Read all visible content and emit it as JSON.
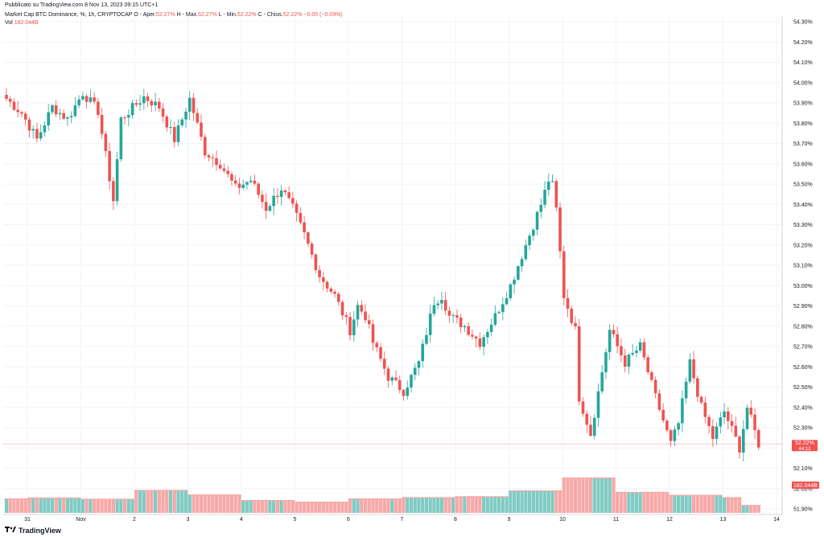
{
  "header": {
    "published": "Pubblicato su TradingView.com 8 Nov 13, 2023 09:15 UTC+1"
  },
  "legend": {
    "symbol": "Market Cap BTC Dominance, %, 1h, CRYPTOCAP",
    "open_label": "O - Aper.",
    "open": "52.27%",
    "high_label": "H - Max.",
    "high": "52.27%",
    "low_label": "L - Min.",
    "low": "52.22%",
    "close_label": "C - Chius.",
    "close": "52.22%",
    "change": "−0.05 (−0.09%)",
    "vol_label": "Vol",
    "vol": "182.044B"
  },
  "footer": {
    "logo_label": "TradingView"
  },
  "price_badge": {
    "value": "52.22%",
    "sub": "44:12"
  },
  "vol_badge": {
    "value": "182.044B"
  },
  "colors": {
    "up": "#26a69a",
    "down": "#ef5350",
    "vol_up": "#80cbc4",
    "vol_down": "#f7a9a7",
    "grid": "#f0f3fa"
  },
  "chart_data": {
    "type": "candlestick",
    "title": "Market Cap BTC Dominance, %, 1h, CRYPTOCAP",
    "x_tick_labels": [
      "31",
      "Nov",
      "2",
      "3",
      "4",
      "5",
      "6",
      "7",
      "8",
      "9",
      "10",
      "11",
      "12",
      "13",
      "14"
    ],
    "y_tick_labels": [
      "54.30%",
      "54.20%",
      "54.10%",
      "54.00%",
      "53.90%",
      "53.80%",
      "53.70%",
      "53.60%",
      "53.50%",
      "53.40%",
      "53.30%",
      "53.20%",
      "53.10%",
      "53.00%",
      "52.90%",
      "52.80%",
      "52.70%",
      "52.60%",
      "52.50%",
      "52.40%",
      "52.30%",
      "52.20%",
      "52.10%",
      "52.00%",
      "51.90%"
    ],
    "ylim": [
      51.88,
      54.32
    ],
    "grid": true,
    "price_line": 52.22,
    "close_path": [
      [
        0,
        53.92
      ],
      [
        4,
        53.85
      ],
      [
        8,
        53.72
      ],
      [
        12,
        53.88
      ],
      [
        16,
        53.82
      ],
      [
        20,
        53.95
      ],
      [
        24,
        53.86
      ],
      [
        28,
        53.42
      ],
      [
        30,
        53.82
      ],
      [
        36,
        53.93
      ],
      [
        40,
        53.88
      ],
      [
        44,
        53.72
      ],
      [
        48,
        53.92
      ],
      [
        52,
        53.66
      ],
      [
        56,
        53.6
      ],
      [
        60,
        53.48
      ],
      [
        64,
        53.52
      ],
      [
        68,
        53.38
      ],
      [
        72,
        53.48
      ],
      [
        75,
        53.38
      ],
      [
        78,
        53.25
      ],
      [
        82,
        53.05
      ],
      [
        86,
        52.95
      ],
      [
        90,
        52.78
      ],
      [
        92,
        52.9
      ],
      [
        94,
        52.85
      ],
      [
        96,
        52.72
      ],
      [
        100,
        52.55
      ],
      [
        104,
        52.48
      ],
      [
        108,
        52.62
      ],
      [
        112,
        52.92
      ],
      [
        114,
        52.95
      ],
      [
        116,
        52.85
      ],
      [
        120,
        52.8
      ],
      [
        124,
        52.72
      ],
      [
        128,
        52.85
      ],
      [
        132,
        53.0
      ],
      [
        136,
        53.2
      ],
      [
        140,
        53.4
      ],
      [
        142,
        53.52
      ],
      [
        143.5,
        53.48
      ],
      [
        146,
        52.95
      ],
      [
        149,
        52.78
      ],
      [
        150,
        52.45
      ],
      [
        153,
        52.27
      ],
      [
        158,
        52.78
      ],
      [
        162,
        52.62
      ],
      [
        166,
        52.7
      ],
      [
        170,
        52.45
      ],
      [
        174,
        52.22
      ],
      [
        176,
        52.32
      ],
      [
        179,
        52.62
      ],
      [
        182,
        52.4
      ],
      [
        185,
        52.25
      ],
      [
        188,
        52.38
      ],
      [
        192,
        52.2
      ],
      [
        194,
        52.4
      ],
      [
        197,
        52.22
      ]
    ],
    "volume_blocks": [
      {
        "start": 0,
        "end": 6,
        "value": 0.62
      },
      {
        "start": 6,
        "end": 20,
        "value": 0.66
      },
      {
        "start": 20,
        "end": 34,
        "value": 0.61
      },
      {
        "start": 34,
        "end": 48,
        "value": 1.0
      },
      {
        "start": 48,
        "end": 62,
        "value": 0.8
      },
      {
        "start": 62,
        "end": 76,
        "value": 0.55
      },
      {
        "start": 76,
        "end": 90,
        "value": 0.48
      },
      {
        "start": 90,
        "end": 104,
        "value": 0.62
      },
      {
        "start": 104,
        "end": 118,
        "value": 0.68
      },
      {
        "start": 118,
        "end": 132,
        "value": 0.72
      },
      {
        "start": 132,
        "end": 146,
        "value": 0.98
      },
      {
        "start": 146,
        "end": 160,
        "value": 1.55
      },
      {
        "start": 160,
        "end": 174,
        "value": 0.91
      },
      {
        "start": 174,
        "end": 188,
        "value": 0.78
      },
      {
        "start": 188,
        "end": 193,
        "value": 0.68
      },
      {
        "start": 193,
        "end": 198,
        "value": 0.33
      }
    ],
    "total_bars": 198
  }
}
